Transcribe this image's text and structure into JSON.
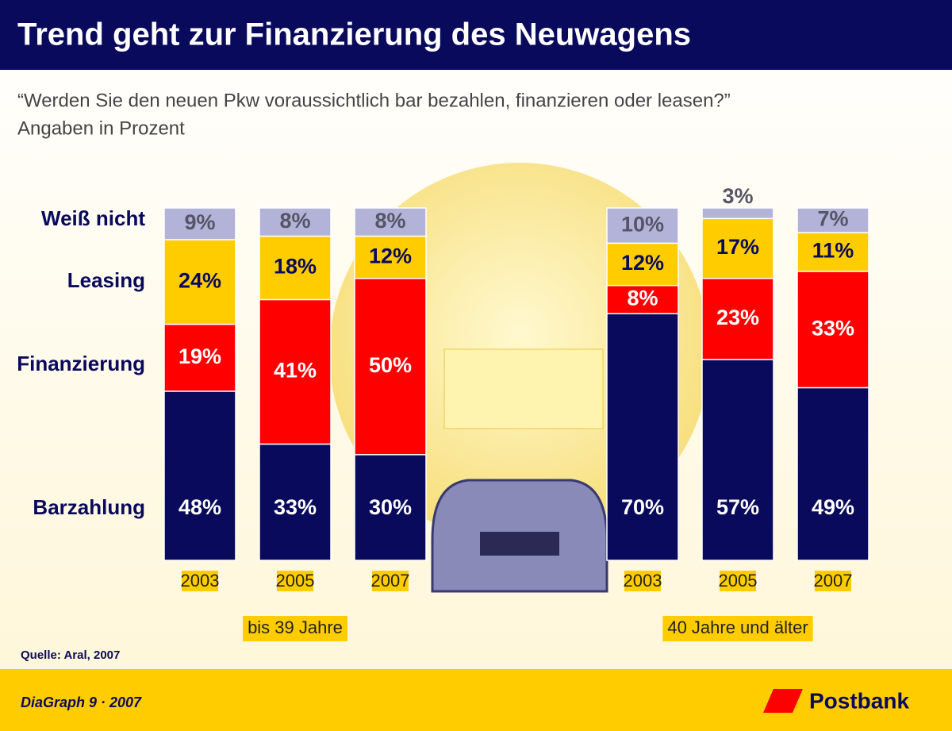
{
  "chart_data": {
    "type": "stacked-bar",
    "title": "Trend geht zur Finanzierung des Neuwagens",
    "subtitle": [
      "“Werden Sie den neuen Pkw voraussichtlich bar bezahlen, finanzieren oder leasen?”",
      "Angaben in Prozent"
    ],
    "categories": [
      "2003",
      "2005",
      "2007",
      "2003",
      "2005",
      "2007"
    ],
    "groups": [
      "bis 39 Jahre",
      "40 Jahre und älter"
    ],
    "series": [
      {
        "name": "Barzahlung",
        "color": "#0a0a5c",
        "label_color": "#ffffff",
        "values": [
          48,
          33,
          30,
          70,
          57,
          49
        ],
        "value_labels": [
          "48%",
          "33%",
          "30%",
          "70%",
          "57%",
          "49%"
        ]
      },
      {
        "name": "Finanzierung",
        "color": "#ff0000",
        "label_color": "#ffffff",
        "values": [
          19,
          41,
          50,
          8,
          23,
          33
        ],
        "value_labels": [
          "19%",
          "41%",
          "50%",
          "8%",
          "23%",
          "33%"
        ]
      },
      {
        "name": "Leasing",
        "color": "#ffcc00",
        "label_color": "#0a0a5c",
        "values": [
          24,
          18,
          12,
          12,
          17,
          11
        ],
        "value_labels": [
          "24%",
          "18%",
          "12%",
          "12%",
          "17%",
          "11%"
        ]
      },
      {
        "name": "Weiß nicht",
        "color": "#b3b3d9",
        "label_color": "#555566",
        "values": [
          9,
          8,
          8,
          10,
          3,
          7
        ],
        "value_labels": [
          "9%",
          "8%",
          "8%",
          "10%",
          "3%",
          "7%"
        ]
      }
    ],
    "source": "Quelle: Aral, 2007"
  },
  "footer": {
    "left": "DiaGraph 9 · 2007",
    "brand": "Postbank"
  }
}
